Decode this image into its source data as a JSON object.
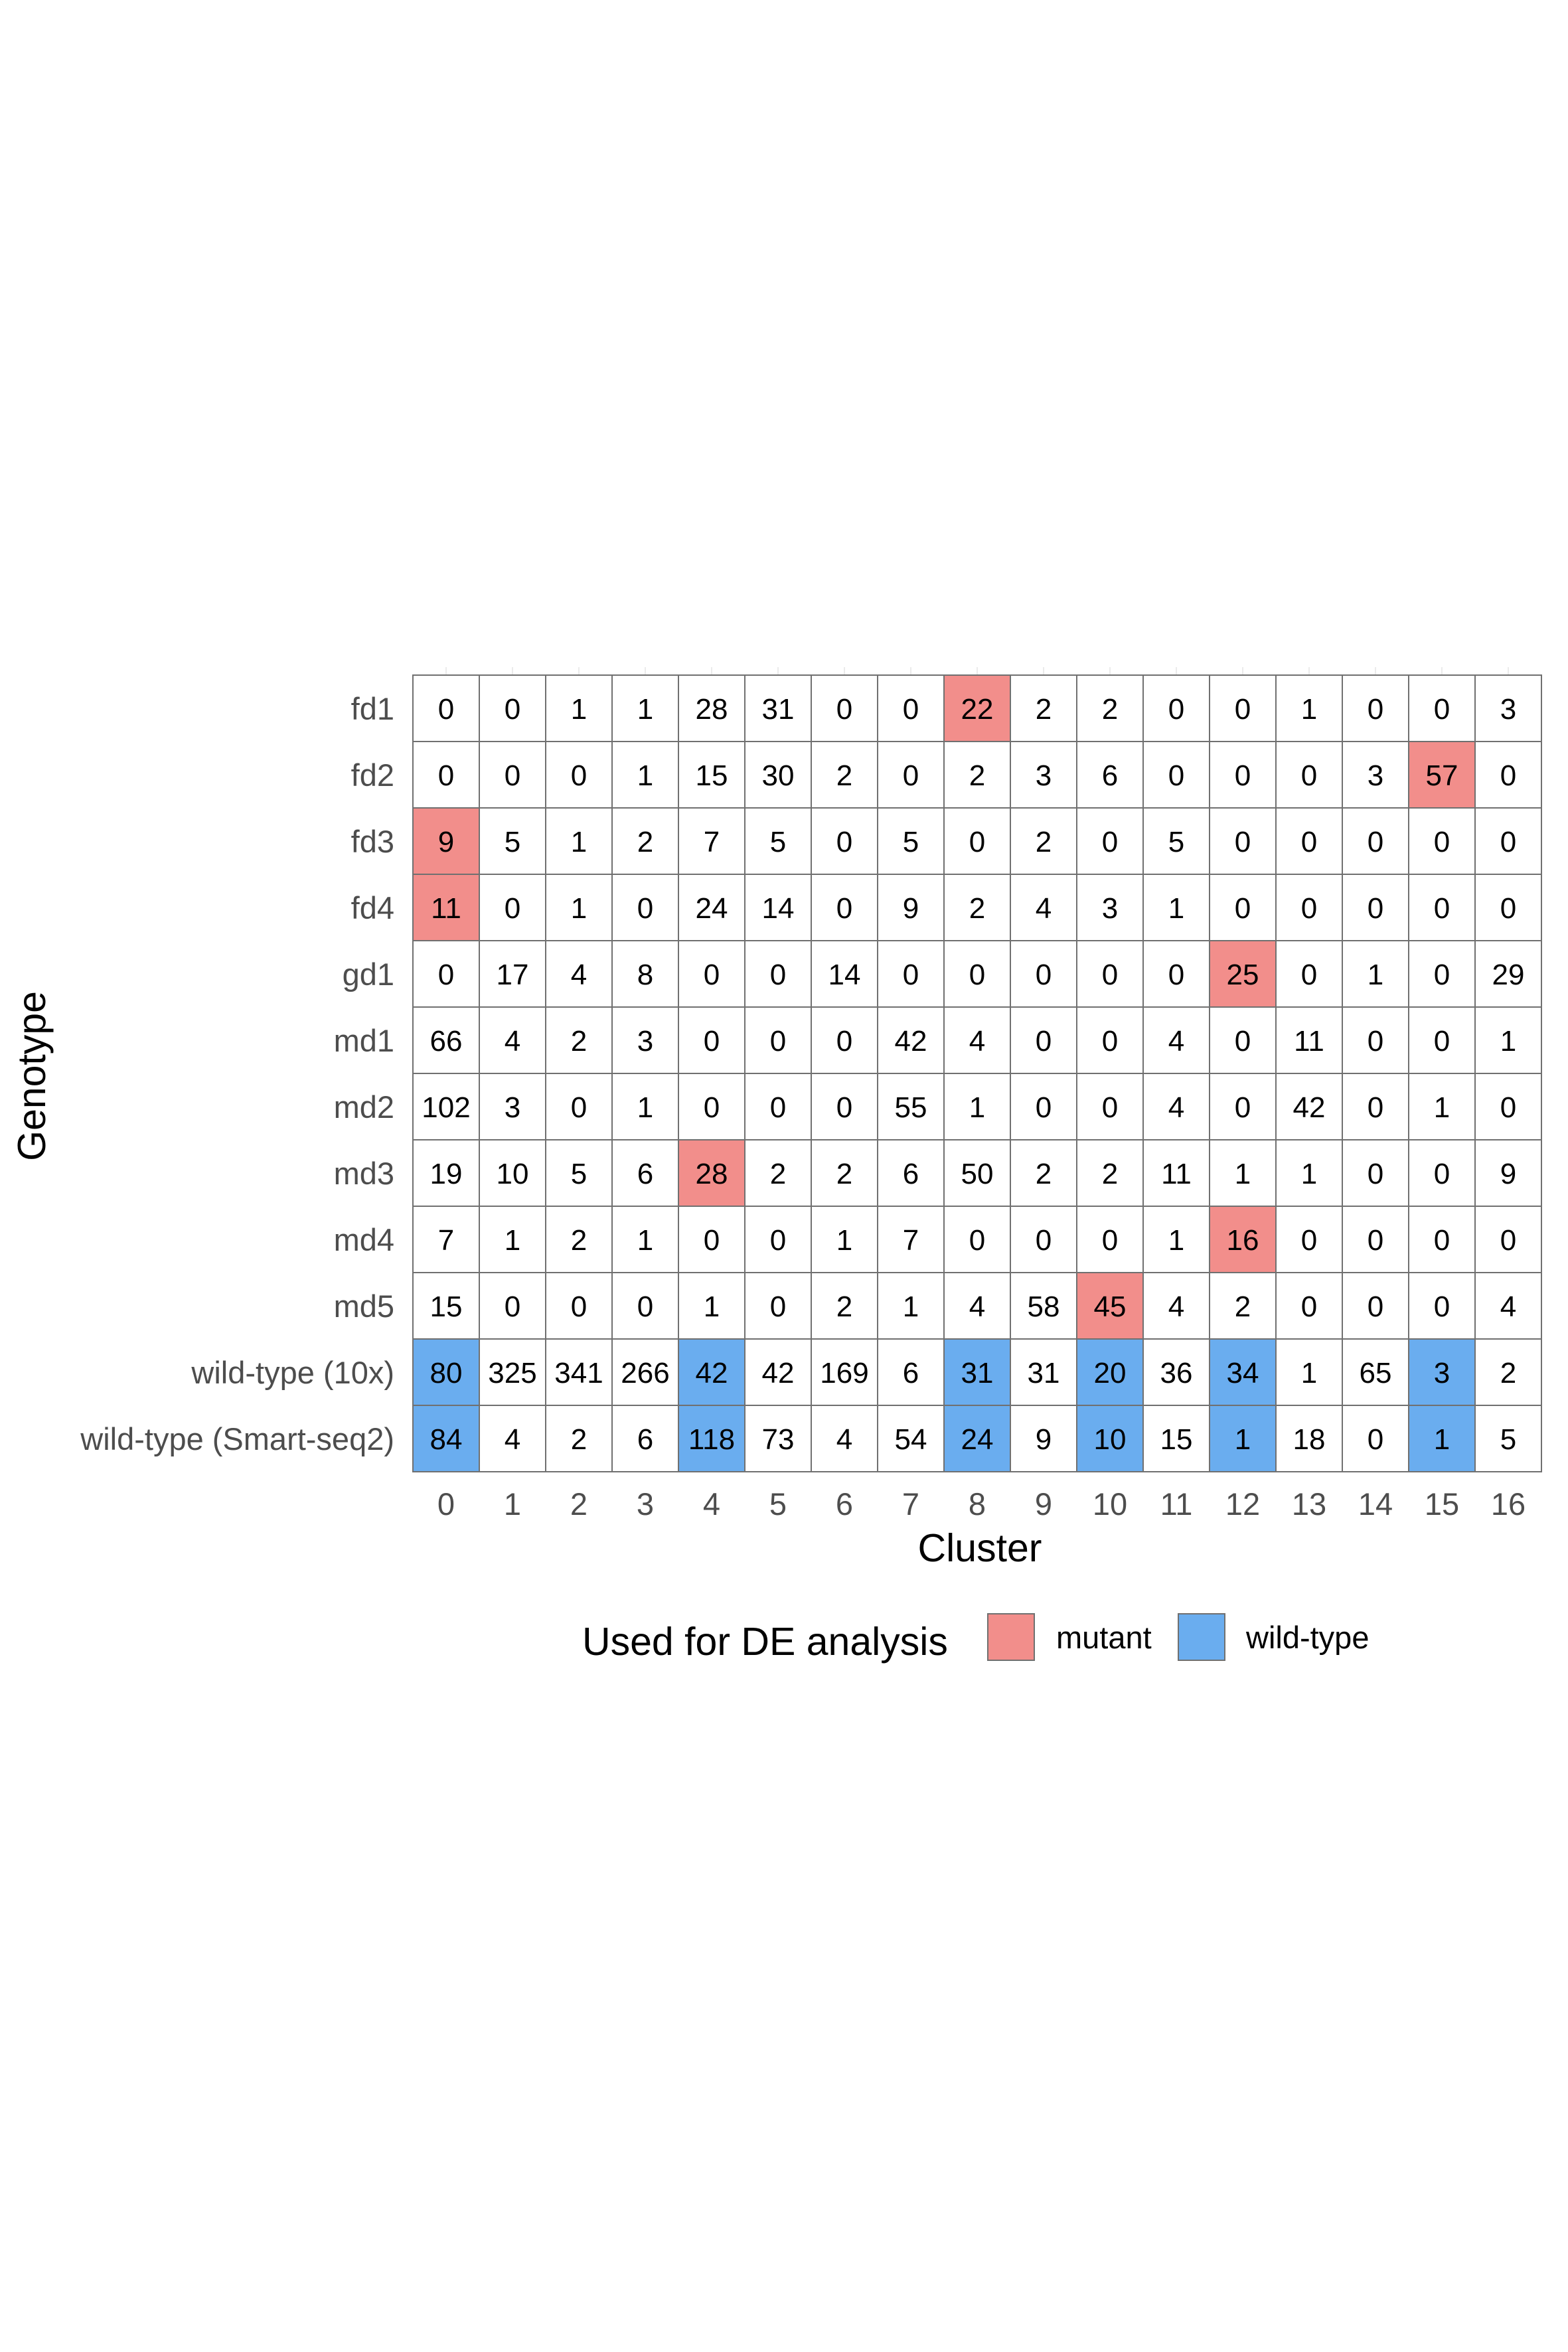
{
  "chart_data": {
    "type": "heatmap",
    "xlabel": "Cluster",
    "ylabel": "Genotype",
    "x_categories": [
      "0",
      "1",
      "2",
      "3",
      "4",
      "5",
      "6",
      "7",
      "8",
      "9",
      "10",
      "11",
      "12",
      "13",
      "14",
      "15",
      "16"
    ],
    "y_categories": [
      "fd1",
      "fd2",
      "fd3",
      "fd4",
      "gd1",
      "md1",
      "md2",
      "md3",
      "md4",
      "md5",
      "wild-type (10x)",
      "wild-type (Smart-seq2)"
    ],
    "values": [
      [
        0,
        0,
        1,
        1,
        28,
        31,
        0,
        0,
        22,
        2,
        2,
        0,
        0,
        1,
        0,
        0,
        3
      ],
      [
        0,
        0,
        0,
        1,
        15,
        30,
        2,
        0,
        2,
        3,
        6,
        0,
        0,
        0,
        3,
        57,
        0
      ],
      [
        9,
        5,
        1,
        2,
        7,
        5,
        0,
        5,
        0,
        2,
        0,
        5,
        0,
        0,
        0,
        0,
        0
      ],
      [
        11,
        0,
        1,
        0,
        24,
        14,
        0,
        9,
        2,
        4,
        3,
        1,
        0,
        0,
        0,
        0,
        0
      ],
      [
        0,
        17,
        4,
        8,
        0,
        0,
        14,
        0,
        0,
        0,
        0,
        0,
        25,
        0,
        1,
        0,
        29
      ],
      [
        66,
        4,
        2,
        3,
        0,
        0,
        0,
        42,
        4,
        0,
        0,
        4,
        0,
        11,
        0,
        0,
        1
      ],
      [
        102,
        3,
        0,
        1,
        0,
        0,
        0,
        55,
        1,
        0,
        0,
        4,
        0,
        42,
        0,
        1,
        0
      ],
      [
        19,
        10,
        5,
        6,
        28,
        2,
        2,
        6,
        50,
        2,
        2,
        11,
        1,
        1,
        0,
        0,
        9
      ],
      [
        7,
        1,
        2,
        1,
        0,
        0,
        1,
        7,
        0,
        0,
        0,
        1,
        16,
        0,
        0,
        0,
        0
      ],
      [
        15,
        0,
        0,
        0,
        1,
        0,
        2,
        1,
        4,
        58,
        45,
        4,
        2,
        0,
        0,
        0,
        4
      ],
      [
        80,
        325,
        341,
        266,
        42,
        42,
        169,
        6,
        31,
        31,
        20,
        36,
        34,
        1,
        65,
        3,
        2
      ],
      [
        84,
        4,
        2,
        6,
        118,
        73,
        4,
        54,
        24,
        9,
        10,
        15,
        1,
        18,
        0,
        1,
        5
      ]
    ],
    "highlight": [
      [
        null,
        null,
        null,
        null,
        null,
        null,
        null,
        null,
        "mutant",
        null,
        null,
        null,
        null,
        null,
        null,
        null,
        null
      ],
      [
        null,
        null,
        null,
        null,
        null,
        null,
        null,
        null,
        null,
        null,
        null,
        null,
        null,
        null,
        null,
        "mutant",
        null
      ],
      [
        "mutant",
        null,
        null,
        null,
        null,
        null,
        null,
        null,
        null,
        null,
        null,
        null,
        null,
        null,
        null,
        null,
        null
      ],
      [
        "mutant",
        null,
        null,
        null,
        null,
        null,
        null,
        null,
        null,
        null,
        null,
        null,
        null,
        null,
        null,
        null,
        null
      ],
      [
        null,
        null,
        null,
        null,
        null,
        null,
        null,
        null,
        null,
        null,
        null,
        null,
        "mutant",
        null,
        null,
        null,
        null
      ],
      [
        null,
        null,
        null,
        null,
        null,
        null,
        null,
        null,
        null,
        null,
        null,
        null,
        null,
        null,
        null,
        null,
        null
      ],
      [
        null,
        null,
        null,
        null,
        null,
        null,
        null,
        null,
        null,
        null,
        null,
        null,
        null,
        null,
        null,
        null,
        null
      ],
      [
        null,
        null,
        null,
        null,
        "mutant",
        null,
        null,
        null,
        null,
        null,
        null,
        null,
        null,
        null,
        null,
        null,
        null
      ],
      [
        null,
        null,
        null,
        null,
        null,
        null,
        null,
        null,
        null,
        null,
        null,
        null,
        "mutant",
        null,
        null,
        null,
        null
      ],
      [
        null,
        null,
        null,
        null,
        null,
        null,
        null,
        null,
        null,
        null,
        "mutant",
        null,
        null,
        null,
        null,
        null,
        null
      ],
      [
        "wild-type",
        null,
        null,
        null,
        "wild-type",
        null,
        null,
        null,
        "wild-type",
        null,
        "wild-type",
        null,
        "wild-type",
        null,
        null,
        "wild-type",
        null
      ],
      [
        "wild-type",
        null,
        null,
        null,
        "wild-type",
        null,
        null,
        null,
        "wild-type",
        null,
        "wild-type",
        null,
        "wild-type",
        null,
        null,
        "wild-type",
        null
      ]
    ],
    "legend": {
      "title": "Used for DE analysis",
      "position": "bottom",
      "items": [
        {
          "label": "mutant",
          "key": "mutant",
          "color": "#F28E8B"
        },
        {
          "label": "wild-type",
          "key": "wild-type",
          "color": "#6AADEF"
        }
      ]
    },
    "grid": true
  }
}
